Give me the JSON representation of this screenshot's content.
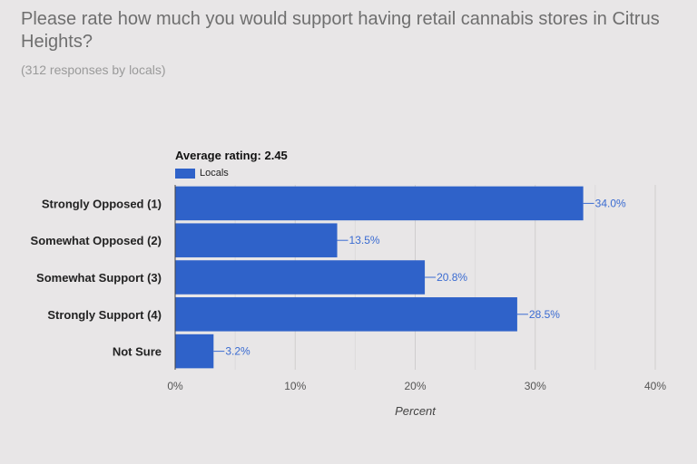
{
  "survey": {
    "question": "Please rate how much you would support having retail cannabis stores in Citrus Heights?",
    "responses": "(312 responses by locals)"
  },
  "chart_data": {
    "type": "bar",
    "orientation": "horizontal",
    "title": "Average rating: 2.45",
    "xlabel": "Percent",
    "ylabel": "",
    "categories": [
      "Strongly Opposed (1)",
      "Somewhat Opposed (2)",
      "Somewhat Support (3)",
      "Strongly Support (4)",
      "Not Sure"
    ],
    "series": [
      {
        "name": "Locals",
        "values": [
          34.0,
          13.5,
          20.8,
          28.5,
          3.2
        ],
        "labels": [
          "34.0%",
          "13.5%",
          "20.8%",
          "28.5%",
          "3.2%"
        ],
        "color": "#2f62c9"
      }
    ],
    "xlim": [
      0,
      40
    ],
    "xticks": [
      0,
      10,
      20,
      30,
      40
    ],
    "xtick_labels": [
      "0%",
      "10%",
      "20%",
      "30%",
      "40%"
    ],
    "grid": true,
    "legend_position": "top-left",
    "label_color": "#3a6bd1"
  }
}
